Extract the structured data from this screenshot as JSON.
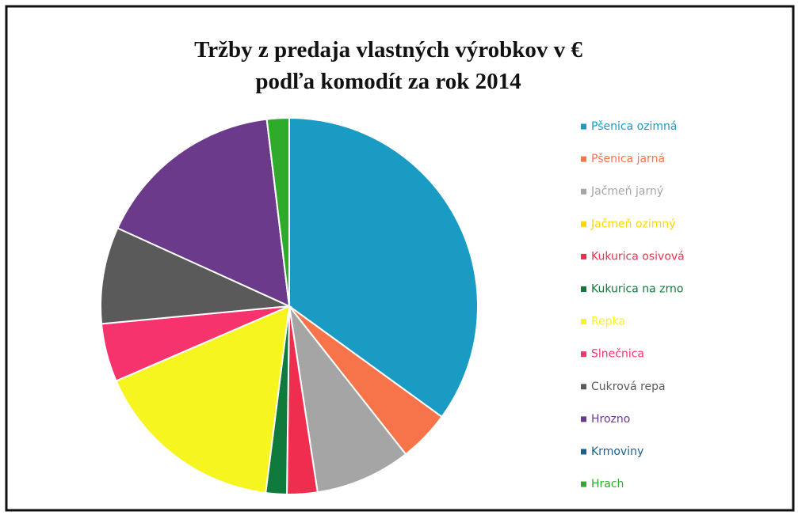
{
  "chart_data": {
    "type": "pie",
    "title": [
      "Tržby z predaja vlastných výrobkov v €",
      "podľa komodít za rok 2014"
    ],
    "categories": [
      "Pšenica ozimná",
      "Pšenica jarná",
      "Jačmeň jarný",
      "Jačmeň ozimný",
      "Kukurica osivová",
      "Kukurica na zrno",
      "Repka",
      "Slnečnica",
      "Cukrová repa",
      "Hrozno",
      "Krmoviny",
      "Hrach"
    ],
    "values": [
      35,
      4.4,
      8.2,
      0,
      2.6,
      1.8,
      16.5,
      5,
      8.3,
      16.3,
      0,
      1.9
    ],
    "colors": [
      "#1a9bc4",
      "#f7734a",
      "#a5a5a5",
      "#ffd700",
      "#ef2d4e",
      "#0f7a3c",
      "#f6f51f",
      "#f7336d",
      "#5a5a5a",
      "#6b3a8a",
      "#1c5f8a",
      "#2eab2a"
    ],
    "legend": "right"
  }
}
